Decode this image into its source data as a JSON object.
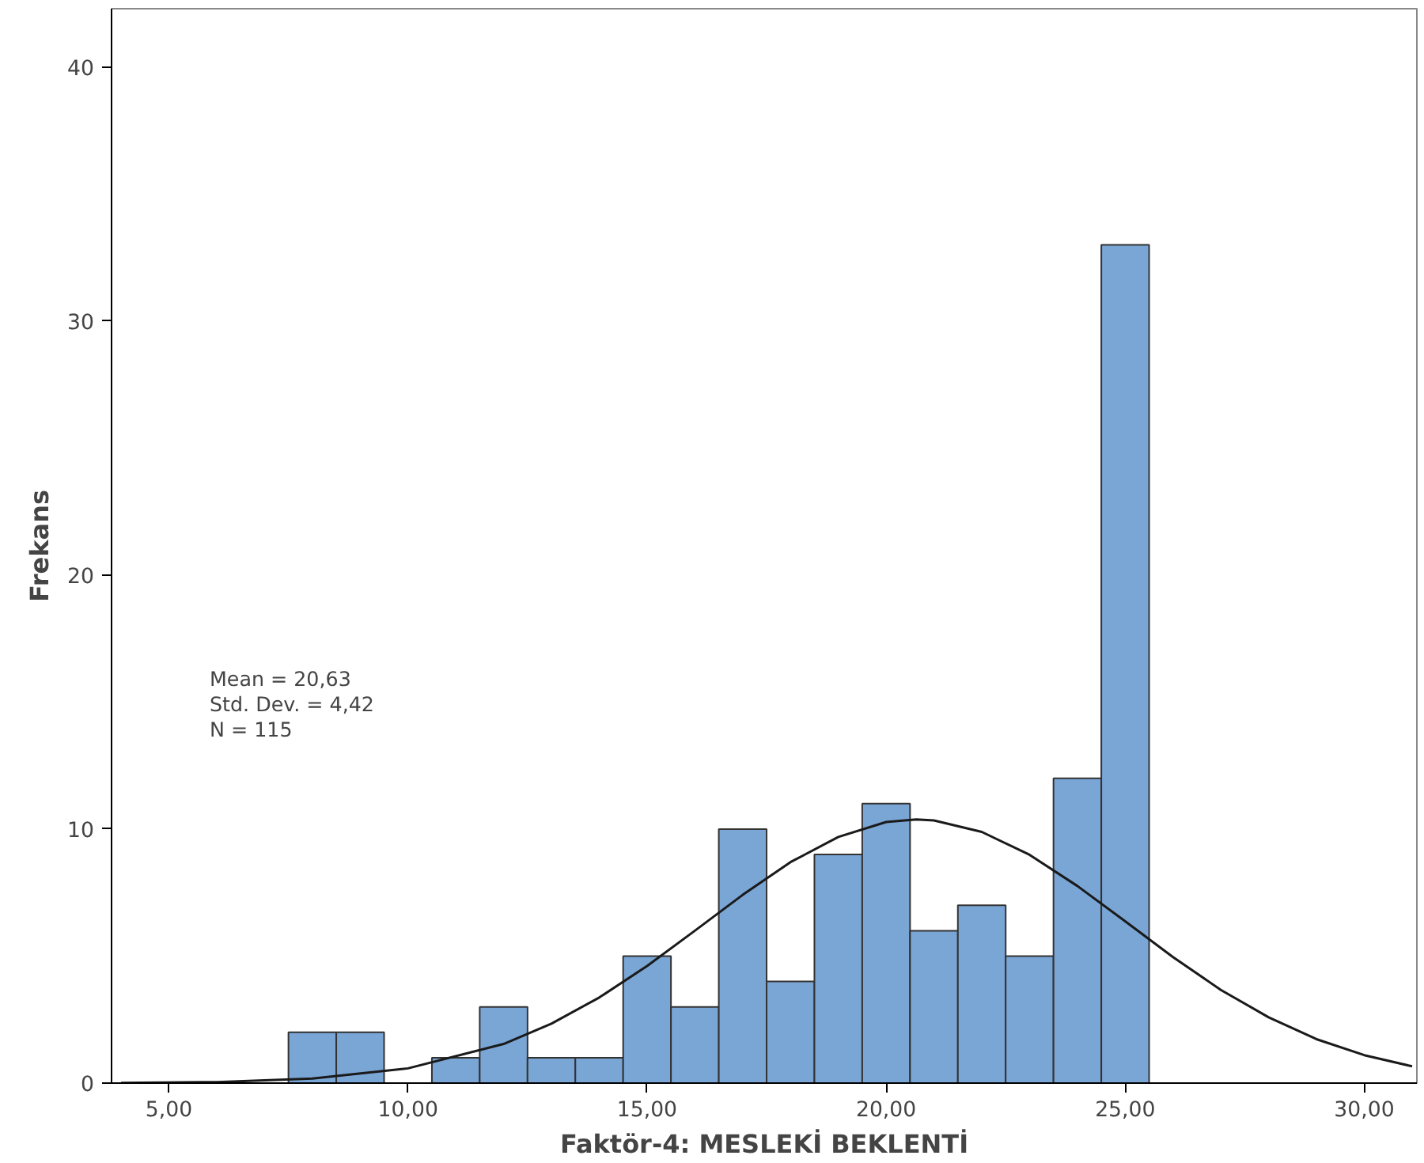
{
  "chart_data": {
    "type": "histogram",
    "xlabel": "Faktör-4: MESLEKİ BEKLENTİ",
    "ylabel": "Frekans",
    "bins": [
      7.5,
      8.5,
      9.5,
      10.5,
      11.5,
      12.5,
      13.5,
      14.5,
      15.5,
      16.5,
      17.5,
      18.5,
      19.5,
      20.5,
      21.5,
      22.5,
      23.5,
      24.5,
      25.5
    ],
    "values": [
      2,
      2,
      0,
      1,
      3,
      1,
      1,
      5,
      3,
      10,
      4,
      9,
      11,
      6,
      7,
      5,
      12,
      33
    ],
    "color": "#7aa6d6",
    "series": [
      {
        "type": "line",
        "color": "#1a1a1a",
        "x": [
          4,
          6,
          8,
          10,
          12,
          13,
          14,
          15,
          16,
          17,
          18,
          19,
          20,
          20.63,
          21,
          22,
          23,
          24,
          25,
          26,
          27,
          28,
          29,
          30,
          31
        ],
        "values": [
          0.01,
          0.04,
          0.18,
          0.58,
          1.54,
          2.34,
          3.37,
          4.61,
          6.0,
          7.41,
          8.7,
          9.69,
          10.28,
          10.38,
          10.34,
          9.89,
          8.99,
          7.76,
          6.37,
          4.96,
          3.67,
          2.59,
          1.73,
          1.1,
          0.66
        ]
      }
    ],
    "xlim": [
      3.8,
      31.1
    ],
    "ylim": [
      0,
      42.3
    ],
    "xticks": [
      {
        "value": 5,
        "label": "5,00"
      },
      {
        "value": 10,
        "label": "10,00"
      },
      {
        "value": 15,
        "label": "15,00"
      },
      {
        "value": 20,
        "label": "20,00"
      },
      {
        "value": 25,
        "label": "25,00"
      },
      {
        "value": 30,
        "label": "30,00"
      }
    ],
    "yticks": [
      0,
      10,
      20,
      30,
      40
    ],
    "grid": false,
    "annotations": [
      "Mean = 20,63",
      "Std. Dev. = 4,42",
      "N = 115"
    ]
  }
}
